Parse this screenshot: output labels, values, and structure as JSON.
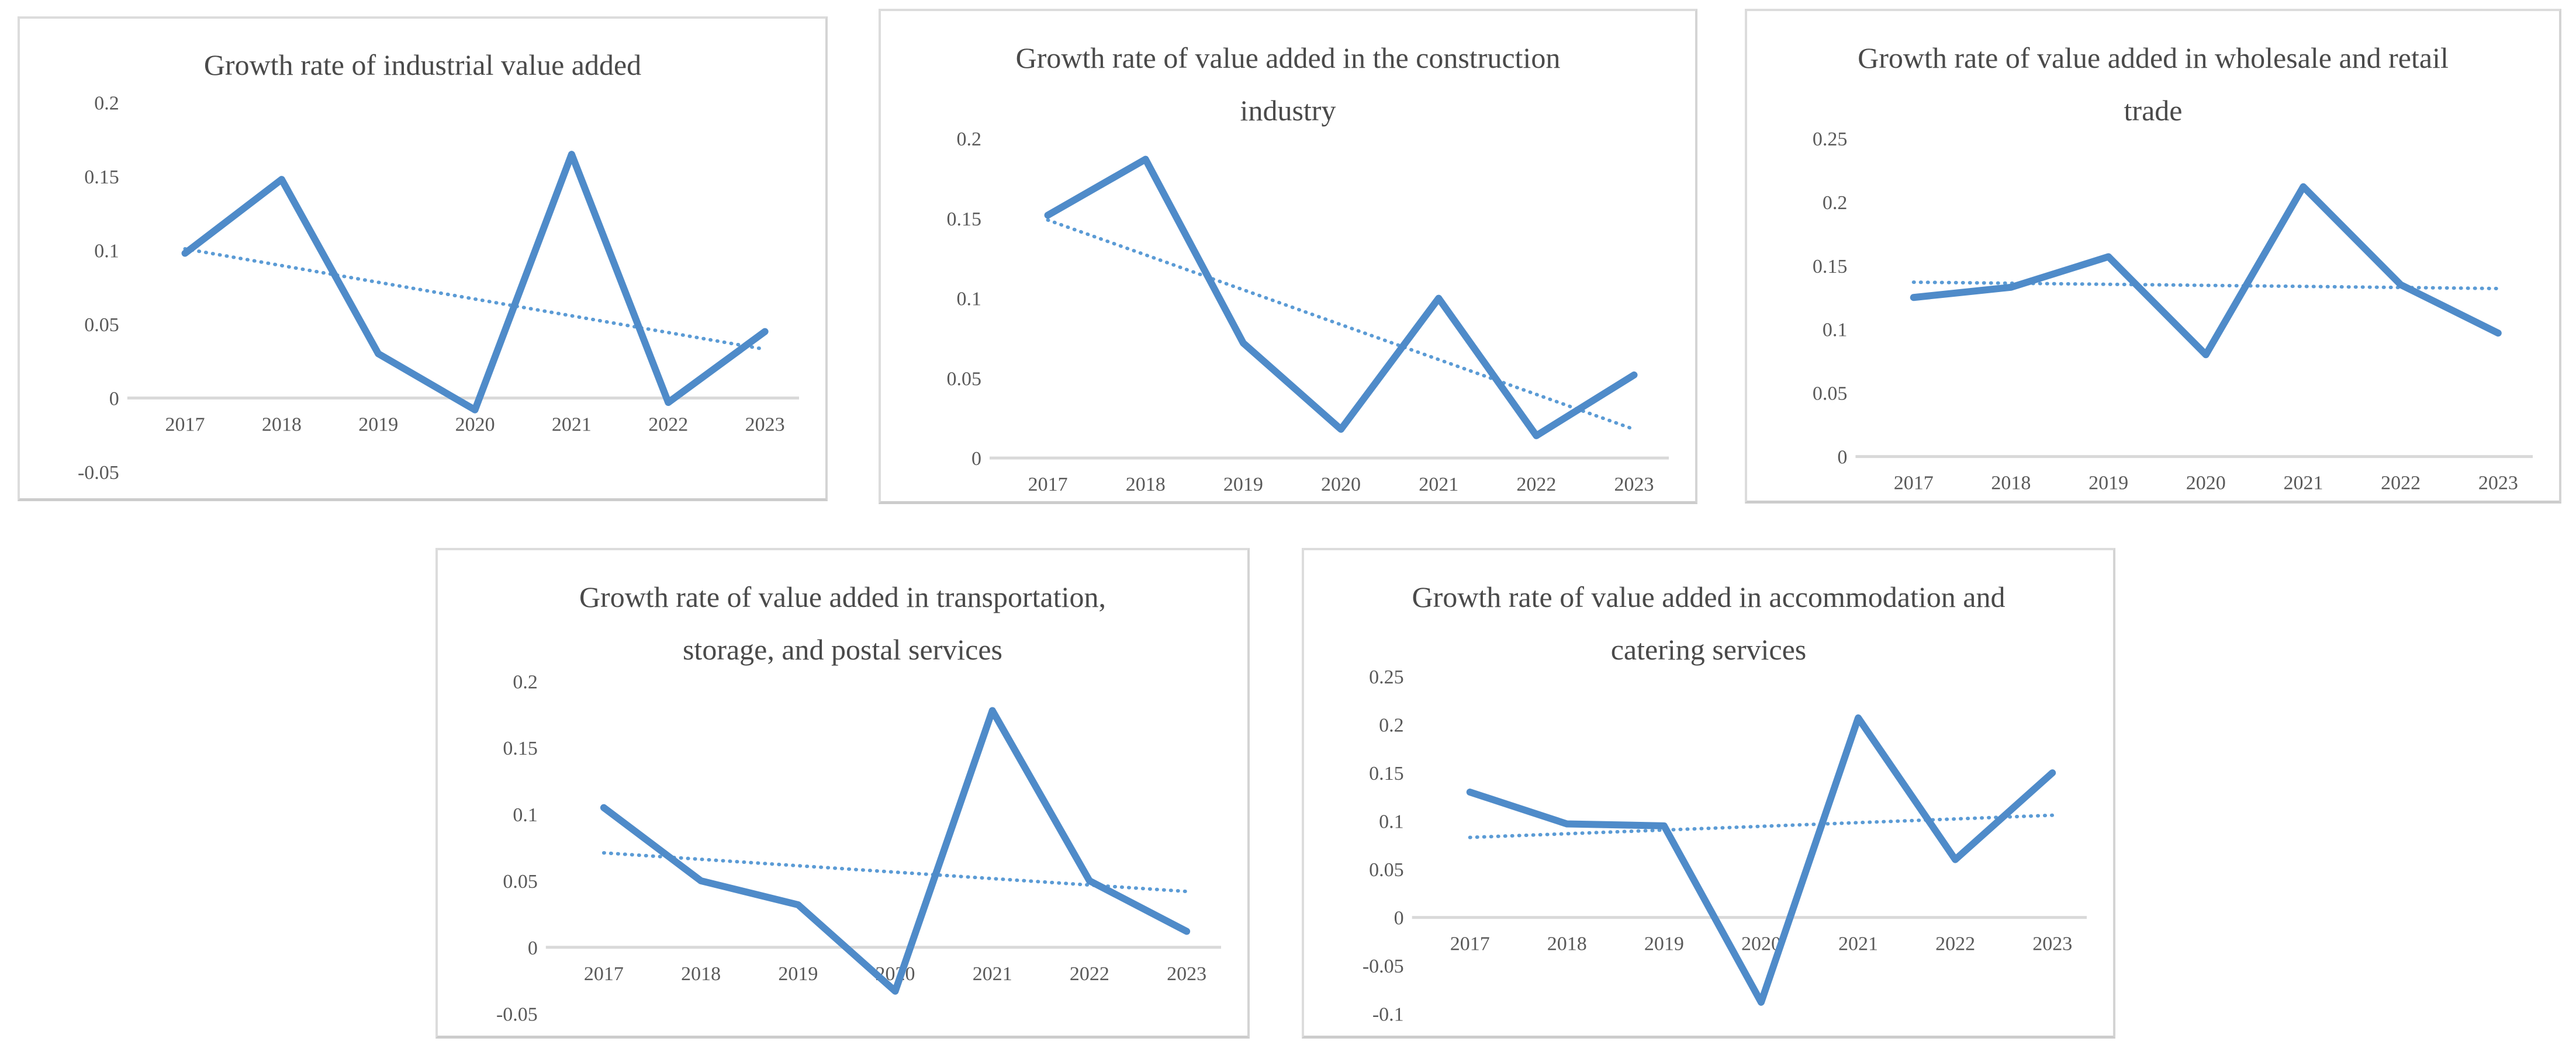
{
  "style": {
    "background": "#FFFFFF",
    "accent_blue": "#4F8BC9",
    "trend_blue": "#5B9BD5",
    "title_color": "#4A4A4A",
    "axis_text_color": "#595959",
    "axis_line_color": "#D9D9D9",
    "panel_border_color": "#DCDCDC"
  },
  "chart_data": [
    {
      "id": "industrial",
      "type": "line",
      "title": "Growth rate of industrial value added",
      "title_lines": [
        "Growth rate of industrial value added"
      ],
      "categories": [
        "2017",
        "2018",
        "2019",
        "2020",
        "2021",
        "2022",
        "2023"
      ],
      "series": [
        {
          "name": "growth rate",
          "style": "solid",
          "values": [
            0.098,
            0.148,
            0.03,
            -0.008,
            0.165,
            -0.003,
            0.045
          ]
        }
      ],
      "trendline": {
        "style": "dotted",
        "start": 0.101,
        "end": 0.033
      },
      "ylim": [
        -0.05,
        0.2
      ],
      "yticks": [
        "0.2",
        "0.15",
        "0.1",
        "0.05",
        "0",
        "-0.05"
      ],
      "grid": false,
      "legend": "none"
    },
    {
      "id": "construction",
      "type": "line",
      "title": "Growth rate of value added in the construction industry",
      "title_lines": [
        "Growth rate of value added in the construction",
        "industry"
      ],
      "categories": [
        "2017",
        "2018",
        "2019",
        "2020",
        "2021",
        "2022",
        "2023"
      ],
      "series": [
        {
          "name": "growth rate",
          "style": "solid",
          "values": [
            0.152,
            0.187,
            0.072,
            0.018,
            0.1,
            0.014,
            0.052
          ]
        }
      ],
      "trendline": {
        "style": "dotted",
        "start": 0.149,
        "end": 0.018
      },
      "ylim": [
        0,
        0.2
      ],
      "yticks": [
        "0.2",
        "0.15",
        "0.1",
        "0.05",
        "0"
      ],
      "grid": false,
      "legend": "none"
    },
    {
      "id": "wholesale-retail",
      "type": "line",
      "title": "Growth rate of value added in wholesale and retail trade",
      "title_lines": [
        "Growth rate of value added in wholesale and retail",
        "trade"
      ],
      "categories": [
        "2017",
        "2018",
        "2019",
        "2020",
        "2021",
        "2022",
        "2023"
      ],
      "series": [
        {
          "name": "growth rate",
          "style": "solid",
          "values": [
            0.125,
            0.133,
            0.157,
            0.08,
            0.212,
            0.135,
            0.097
          ]
        }
      ],
      "trendline": {
        "style": "dotted",
        "start": 0.137,
        "end": 0.132
      },
      "ylim": [
        0,
        0.25
      ],
      "yticks": [
        "0.25",
        "0.2",
        "0.15",
        "0.1",
        "0.05",
        "0"
      ],
      "grid": false,
      "legend": "none"
    },
    {
      "id": "transport-storage-postal",
      "type": "line",
      "title": "Growth rate of value added in transportation, storage, and postal services",
      "title_lines": [
        "Growth rate of value added in transportation,",
        "storage, and postal services"
      ],
      "categories": [
        "2017",
        "2018",
        "2019",
        "2020",
        "2021",
        "2022",
        "2023"
      ],
      "series": [
        {
          "name": "growth rate",
          "style": "solid",
          "values": [
            0.105,
            0.05,
            0.032,
            -0.033,
            0.178,
            0.05,
            0.012
          ]
        }
      ],
      "trendline": {
        "style": "dotted",
        "start": 0.071,
        "end": 0.042
      },
      "ylim": [
        -0.05,
        0.2
      ],
      "yticks": [
        "0.2",
        "0.15",
        "0.1",
        "0.05",
        "0",
        "-0.05"
      ],
      "grid": false,
      "legend": "none"
    },
    {
      "id": "accommodation-catering",
      "type": "line",
      "title": "Growth rate of value added in accommodation and catering services",
      "title_lines": [
        "Growth rate of value added in accommodation and",
        "catering services"
      ],
      "categories": [
        "2017",
        "2018",
        "2019",
        "2020",
        "2021",
        "2022",
        "2023"
      ],
      "series": [
        {
          "name": "growth rate",
          "style": "solid",
          "values": [
            0.13,
            0.097,
            0.095,
            -0.088,
            0.207,
            0.06,
            0.15
          ]
        }
      ],
      "trendline": {
        "style": "dotted",
        "start": 0.083,
        "end": 0.106
      },
      "ylim": [
        -0.1,
        0.25
      ],
      "yticks": [
        "0.25",
        "0.2",
        "0.15",
        "0.1",
        "0.05",
        "0",
        "-0.05",
        "-0.1"
      ],
      "grid": false,
      "legend": "none"
    }
  ]
}
